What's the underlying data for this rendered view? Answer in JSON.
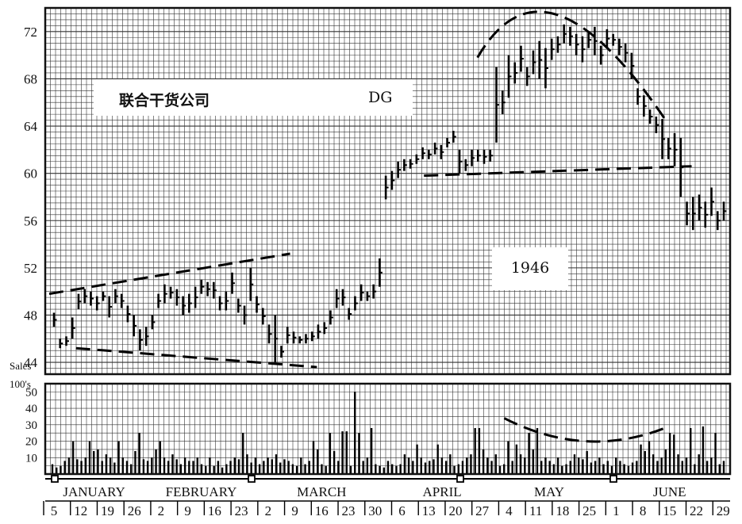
{
  "chart_data": [
    {
      "type": "bar",
      "subtype": "ohlc-price",
      "title": "联合干货公司",
      "symbol": "DG",
      "year": "1946",
      "ylabel": "",
      "ylim": [
        43,
        74
      ],
      "y_ticks": [
        44,
        48,
        52,
        56,
        60,
        64,
        68,
        72
      ],
      "months": [
        "JANUARY",
        "FEBRUARY",
        "MARCH",
        "APRIL",
        "MAY",
        "JUNE"
      ],
      "week_dates": [
        "5",
        "12",
        "19",
        "26",
        "2",
        "9",
        "16",
        "23",
        "2",
        "9",
        "16",
        "23",
        "30",
        "6",
        "13",
        "20",
        "27",
        "4",
        "11",
        "18",
        "25",
        "1",
        "8",
        "15",
        "22",
        "29"
      ],
      "price_bars": [
        [
          47.0,
          48.2
        ],
        [
          45.2,
          46.0
        ],
        [
          45.4,
          46.2
        ],
        [
          46.0,
          47.8
        ],
        [
          48.5,
          49.8
        ],
        [
          49.0,
          50.2
        ],
        [
          48.8,
          50.0
        ],
        [
          48.4,
          49.6
        ],
        [
          49.2,
          50.0
        ],
        [
          47.8,
          49.6
        ],
        [
          49.0,
          50.2
        ],
        [
          48.6,
          49.8
        ],
        [
          47.4,
          48.8
        ],
        [
          46.2,
          48.0
        ],
        [
          45.0,
          46.8
        ],
        [
          45.4,
          47.0
        ],
        [
          46.8,
          48.0
        ],
        [
          48.6,
          49.8
        ],
        [
          49.0,
          50.6
        ],
        [
          49.4,
          50.4
        ],
        [
          48.8,
          50.2
        ],
        [
          48.0,
          49.6
        ],
        [
          48.2,
          49.8
        ],
        [
          48.6,
          50.4
        ],
        [
          49.8,
          51.0
        ],
        [
          49.6,
          50.8
        ],
        [
          49.4,
          50.8
        ],
        [
          48.4,
          49.6
        ],
        [
          48.4,
          50.0
        ],
        [
          49.8,
          51.6
        ],
        [
          48.2,
          49.4
        ],
        [
          47.2,
          48.8
        ],
        [
          49.2,
          52.0
        ],
        [
          48.2,
          49.6
        ],
        [
          47.2,
          48.6
        ],
        [
          45.6,
          47.2
        ],
        [
          44.0,
          48.0
        ],
        [
          44.4,
          45.4
        ],
        [
          45.6,
          47.0
        ],
        [
          45.6,
          46.6
        ],
        [
          45.6,
          46.2
        ],
        [
          45.6,
          46.4
        ],
        [
          45.8,
          46.6
        ],
        [
          46.0,
          47.2
        ],
        [
          46.4,
          47.4
        ],
        [
          47.2,
          48.4
        ],
        [
          48.6,
          50.2
        ],
        [
          48.8,
          50.2
        ],
        [
          47.6,
          48.6
        ],
        [
          48.4,
          49.6
        ],
        [
          49.2,
          50.6
        ],
        [
          49.2,
          50.0
        ],
        [
          49.4,
          50.6
        ],
        [
          50.4,
          52.8
        ],
        [
          57.8,
          59.8
        ],
        [
          58.6,
          60.2
        ],
        [
          59.6,
          61.0
        ],
        [
          60.2,
          61.2
        ],
        [
          60.4,
          61.2
        ],
        [
          60.8,
          61.6
        ],
        [
          61.2,
          62.2
        ],
        [
          61.2,
          62.0
        ],
        [
          61.6,
          62.6
        ],
        [
          61.2,
          62.4
        ],
        [
          62.2,
          63.0
        ],
        [
          62.6,
          63.6
        ],
        [
          60.0,
          62.0
        ],
        [
          60.2,
          61.2
        ],
        [
          60.6,
          62.0
        ],
        [
          61.0,
          62.0
        ],
        [
          60.8,
          62.0
        ],
        [
          61.0,
          62.0
        ],
        [
          62.6,
          69.0
        ],
        [
          65.0,
          67.0
        ],
        [
          66.4,
          70.0
        ],
        [
          67.6,
          69.4
        ],
        [
          68.6,
          70.8
        ],
        [
          67.4,
          69.0
        ],
        [
          68.4,
          70.4
        ],
        [
          68.0,
          71.2
        ],
        [
          67.2,
          70.6
        ],
        [
          69.6,
          71.4
        ],
        [
          70.2,
          71.6
        ],
        [
          71.0,
          72.6
        ],
        [
          70.8,
          72.4
        ],
        [
          70.0,
          71.8
        ],
        [
          69.4,
          71.6
        ],
        [
          70.6,
          72.0
        ],
        [
          70.0,
          72.4
        ],
        [
          69.2,
          70.8
        ],
        [
          70.6,
          72.2
        ],
        [
          70.8,
          71.8
        ],
        [
          70.0,
          71.4
        ],
        [
          69.4,
          71.0
        ],
        [
          68.0,
          70.2
        ],
        [
          65.8,
          67.2
        ],
        [
          64.8,
          66.6
        ],
        [
          64.2,
          65.4
        ],
        [
          63.4,
          64.8
        ],
        [
          61.2,
          64.6
        ],
        [
          61.2,
          63.0
        ],
        [
          60.6,
          63.4
        ],
        [
          58.0,
          63.0
        ],
        [
          55.6,
          57.6
        ],
        [
          55.2,
          58.0
        ],
        [
          56.0,
          58.2
        ],
        [
          55.4,
          57.6
        ],
        [
          56.4,
          58.8
        ],
        [
          55.2,
          56.8
        ],
        [
          56.0,
          57.6
        ]
      ],
      "lines": [
        {
          "name": "upper trend line (Jan–Mar)",
          "from": [
            "Jan 5",
            49.8
          ],
          "to": [
            "Mar 9",
            53.2
          ]
        },
        {
          "name": "lower trend line (Jan–Mar)",
          "from": [
            "Jan 12",
            45.2
          ],
          "to": [
            "Mar 16",
            43.6
          ]
        },
        {
          "name": "neckline",
          "from": [
            "Apr 13",
            59.8
          ],
          "to": [
            "Jun 22",
            60.6
          ]
        },
        {
          "name": "rounding top",
          "from": [
            "Apr 27",
            69.8
          ],
          "peak": [
            "May 18",
            73.4
          ],
          "to": [
            "Jun 15",
            64.6
          ]
        }
      ]
    },
    {
      "type": "bar",
      "subtype": "volume",
      "ylabel": "Sales 100's",
      "ylim": [
        0,
        55
      ],
      "y_ticks": [
        10,
        20,
        30,
        40,
        50
      ],
      "values": [
        6,
        4,
        5,
        8,
        10,
        20,
        9,
        8,
        10,
        20,
        14,
        15,
        8,
        12,
        10,
        7,
        20,
        10,
        8,
        6,
        14,
        25,
        9,
        8,
        10,
        15,
        20,
        10,
        8,
        12,
        9,
        6,
        10,
        8,
        8,
        10,
        6,
        5,
        10,
        5,
        8,
        4,
        6,
        8,
        10,
        9,
        25,
        12,
        7,
        10,
        6,
        8,
        10,
        9,
        12,
        7,
        9,
        8,
        6,
        5,
        10,
        6,
        8,
        20,
        15,
        6,
        5,
        25,
        14,
        8,
        26,
        26,
        5,
        50,
        25,
        8,
        10,
        28,
        6,
        5,
        4,
        8,
        6,
        5,
        6,
        12,
        10,
        8,
        18,
        10,
        7,
        8,
        9,
        18,
        10,
        8,
        12,
        5,
        6,
        8,
        10,
        12,
        28,
        28,
        15,
        10,
        8,
        12,
        5,
        6,
        20,
        8,
        18,
        12,
        10,
        25,
        15,
        28,
        8,
        10,
        8,
        6,
        10,
        5,
        6,
        8,
        12,
        10,
        9,
        14,
        7,
        8,
        10,
        6,
        8,
        5,
        10,
        8,
        6,
        5,
        7,
        8,
        18,
        14,
        20,
        12,
        8,
        10,
        15,
        25,
        24,
        12,
        8,
        10,
        28,
        6,
        12,
        29,
        8,
        10,
        25,
        6,
        8
      ],
      "lines": [
        {
          "name": "rounding volume trough",
          "from": [
            "May 4",
            34
          ],
          "low": [
            "May 25",
            20
          ],
          "to": [
            "Jun 15",
            28
          ]
        }
      ]
    }
  ]
}
